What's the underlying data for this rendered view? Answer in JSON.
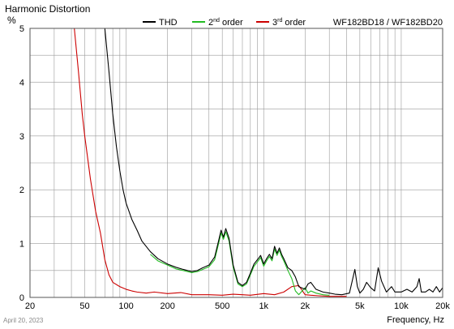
{
  "footer": {
    "date_stamp": "April 20, 2023"
  },
  "chart_data": {
    "type": "line",
    "title": "Harmonic Distortion",
    "ylabel": "%",
    "xlabel": "Frequency, Hz",
    "caption": "WF182BD18 / WF182BD20",
    "xscale": "log",
    "xlim": [
      20,
      20000
    ],
    "ylim": [
      0,
      5
    ],
    "grid": true,
    "legend_position": "top",
    "x_ticks": [
      {
        "value": 20,
        "label": "20"
      },
      {
        "value": 50,
        "label": "50"
      },
      {
        "value": 100,
        "label": "100"
      },
      {
        "value": 200,
        "label": "200"
      },
      {
        "value": 500,
        "label": "500"
      },
      {
        "value": 1000,
        "label": "1k"
      },
      {
        "value": 2000,
        "label": "2k"
      },
      {
        "value": 5000,
        "label": "5k"
      },
      {
        "value": 10000,
        "label": "10k"
      },
      {
        "value": 20000,
        "label": "20k"
      }
    ],
    "y_ticks": [
      {
        "value": 0,
        "label": "0"
      },
      {
        "value": 1,
        "label": "1"
      },
      {
        "value": 2,
        "label": "2"
      },
      {
        "value": 3,
        "label": "3"
      },
      {
        "value": 4,
        "label": "4"
      },
      {
        "value": 5,
        "label": "5"
      }
    ],
    "series": [
      {
        "name": "THD",
        "label_main": "THD",
        "label_sup": "",
        "label_tail": "",
        "color": "#000000",
        "x": [
          70,
          75,
          80,
          85,
          90,
          95,
          100,
          110,
          120,
          130,
          150,
          170,
          200,
          230,
          260,
          300,
          330,
          360,
          400,
          440,
          470,
          490,
          510,
          530,
          560,
          600,
          650,
          700,
          750,
          800,
          850,
          900,
          950,
          1000,
          1050,
          1100,
          1150,
          1200,
          1250,
          1300,
          1350,
          1400,
          1500,
          1600,
          1700,
          1800,
          2000,
          2100,
          2200,
          2400,
          2700,
          3000,
          3300,
          3700,
          4200,
          4600,
          4800,
          5000,
          5300,
          5600,
          6000,
          6400,
          6800,
          7200,
          7800,
          8500,
          9000,
          9500,
          10000,
          11000,
          12000,
          13000,
          13500,
          14000,
          15000,
          16000,
          17000,
          18000,
          19000,
          20000
        ],
        "y": [
          5.0,
          4.2,
          3.4,
          2.8,
          2.35,
          2.0,
          1.75,
          1.45,
          1.25,
          1.05,
          0.85,
          0.72,
          0.62,
          0.56,
          0.52,
          0.48,
          0.5,
          0.55,
          0.6,
          0.75,
          1.05,
          1.25,
          1.12,
          1.28,
          1.1,
          0.6,
          0.28,
          0.22,
          0.28,
          0.45,
          0.62,
          0.7,
          0.78,
          0.62,
          0.72,
          0.8,
          0.72,
          0.95,
          0.82,
          0.92,
          0.8,
          0.72,
          0.55,
          0.5,
          0.38,
          0.2,
          0.15,
          0.25,
          0.28,
          0.15,
          0.1,
          0.08,
          0.06,
          0.05,
          0.08,
          0.52,
          0.2,
          0.08,
          0.15,
          0.28,
          0.18,
          0.12,
          0.55,
          0.3,
          0.1,
          0.2,
          0.1,
          0.1,
          0.1,
          0.15,
          0.1,
          0.2,
          0.35,
          0.1,
          0.1,
          0.15,
          0.1,
          0.2,
          0.1,
          0.18
        ]
      },
      {
        "name": "2nd order",
        "label_main": "2",
        "label_sup": "nd",
        "label_tail": " order",
        "color": "#22bb22",
        "x": [
          150,
          170,
          200,
          230,
          260,
          300,
          330,
          360,
          400,
          440,
          470,
          490,
          510,
          530,
          560,
          600,
          650,
          700,
          750,
          800,
          850,
          900,
          950,
          1000,
          1050,
          1100,
          1150,
          1200,
          1250,
          1300,
          1350,
          1400,
          1500,
          1600,
          1700,
          1800,
          2000,
          2100,
          2200,
          2400,
          2700,
          3000
        ],
        "y": [
          0.8,
          0.68,
          0.6,
          0.53,
          0.5,
          0.46,
          0.48,
          0.52,
          0.57,
          0.7,
          1.0,
          1.2,
          1.08,
          1.22,
          1.05,
          0.56,
          0.25,
          0.2,
          0.25,
          0.42,
          0.58,
          0.66,
          0.74,
          0.58,
          0.68,
          0.76,
          0.68,
          0.9,
          0.78,
          0.88,
          0.76,
          0.68,
          0.5,
          0.35,
          0.12,
          0.05,
          0.18,
          0.08,
          0.12,
          0.08,
          0.05,
          0.04
        ]
      },
      {
        "name": "3rd order",
        "label_main": "3",
        "label_sup": "rd",
        "label_tail": " order",
        "color": "#cc0000",
        "x": [
          42,
          45,
          48,
          50,
          55,
          60,
          65,
          70,
          75,
          80,
          90,
          100,
          110,
          120,
          140,
          160,
          200,
          250,
          300,
          400,
          500,
          600,
          700,
          800,
          1000,
          1200,
          1400,
          1600,
          1800,
          2000,
          2200,
          2500,
          3000,
          3500,
          4000
        ],
        "y": [
          5.0,
          4.2,
          3.4,
          3.0,
          2.2,
          1.6,
          1.2,
          0.7,
          0.42,
          0.28,
          0.2,
          0.15,
          0.12,
          0.1,
          0.08,
          0.1,
          0.07,
          0.09,
          0.05,
          0.05,
          0.04,
          0.06,
          0.05,
          0.04,
          0.07,
          0.05,
          0.1,
          0.2,
          0.22,
          0.05,
          0.04,
          0.03,
          0.02,
          0.02,
          0.02
        ]
      }
    ]
  }
}
